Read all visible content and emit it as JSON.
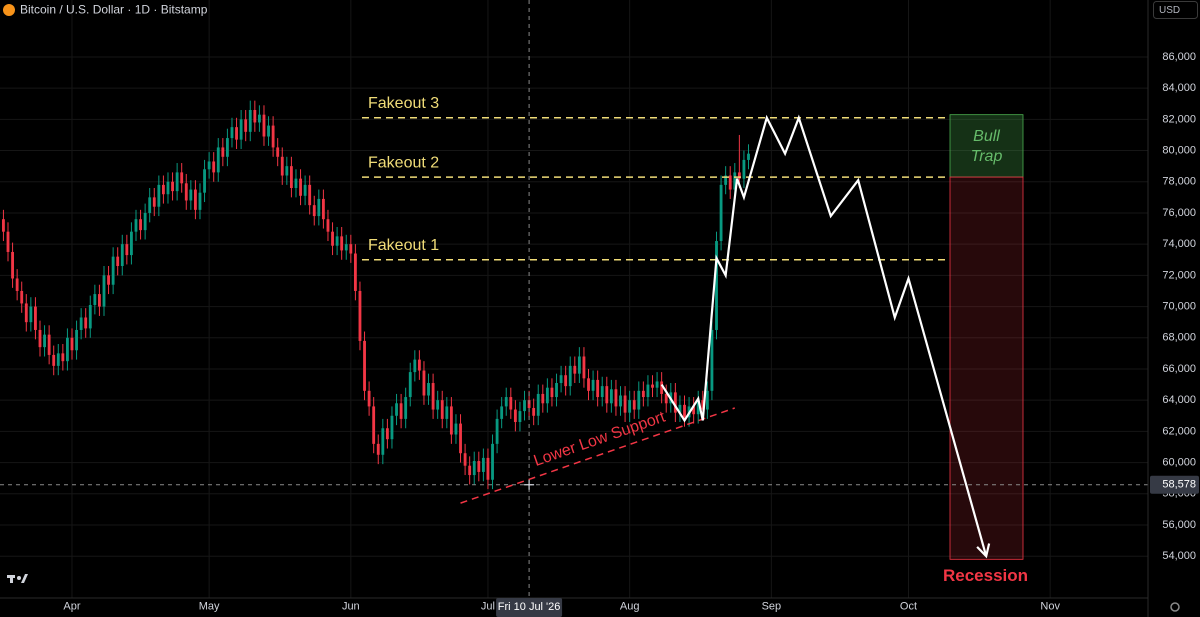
{
  "chart_data": {
    "type": "candlestick",
    "title": "Bitcoin / U.S. Dollar · 1D · Bitstamp",
    "currency": "USD",
    "up_color": "#089981",
    "down_color": "#f23645",
    "grid": true,
    "xlim": [
      -0.75,
      250.4
    ],
    "xticks": [
      {
        "value": 15,
        "label": "Apr"
      },
      {
        "value": 45,
        "label": "May"
      },
      {
        "value": 76,
        "label": "Jun"
      },
      {
        "value": 106,
        "label": "Jul"
      },
      {
        "value": 137,
        "label": "Aug"
      },
      {
        "value": 168,
        "label": "Sep"
      },
      {
        "value": 198,
        "label": "Oct"
      },
      {
        "value": 229,
        "label": "Nov"
      }
    ],
    "ylim": [
      51320,
      89650
    ],
    "yticks": [
      {
        "value": 54000,
        "label": "54,000"
      },
      {
        "value": 56000,
        "label": "56,000"
      },
      {
        "value": 58000,
        "label": "58,000"
      },
      {
        "value": 60000,
        "label": "60,000"
      },
      {
        "value": 62000,
        "label": "62,000"
      },
      {
        "value": 64000,
        "label": "64,000"
      },
      {
        "value": 66000,
        "label": "66,000"
      },
      {
        "value": 68000,
        "label": "68,000"
      },
      {
        "value": 70000,
        "label": "70,000"
      },
      {
        "value": 72000,
        "label": "72,000"
      },
      {
        "value": 74000,
        "label": "74,000"
      },
      {
        "value": 76000,
        "label": "76,000"
      },
      {
        "value": 78000,
        "label": "78,000"
      },
      {
        "value": 80000,
        "label": "80,000"
      },
      {
        "value": 82000,
        "label": "82,000"
      },
      {
        "value": 84000,
        "label": "84,000"
      },
      {
        "value": 86000,
        "label": "86,000"
      }
    ],
    "open": [
      75600,
      74800,
      73500,
      71800,
      71000,
      70200,
      69000,
      70000,
      68500,
      67400,
      68200,
      66900,
      66200,
      67000,
      66500,
      68000,
      67200,
      68500,
      69300,
      68600,
      70100,
      70800,
      70000,
      72000,
      71400,
      73200,
      72600,
      74000,
      73300,
      74800,
      75600,
      74900,
      76000,
      77000,
      76400,
      77800,
      77200,
      78000,
      77400,
      78600,
      77900,
      76800,
      77500,
      76200,
      77300,
      78800,
      79300,
      78600,
      80200,
      79600,
      80800,
      81500,
      80700,
      82000,
      81200,
      82600,
      81800,
      82300,
      80900,
      81600,
      80200,
      79600,
      78400,
      79000,
      77600,
      78200,
      77100,
      77800,
      76500,
      75800,
      76900,
      75600,
      74800,
      73900,
      74500,
      73600,
      74000,
      73400,
      71000,
      67800,
      64600,
      63600,
      61200,
      60500,
      62200,
      61500,
      63000,
      63800,
      62800,
      64200,
      65800,
      66600,
      65900,
      64300,
      65100,
      63400,
      64000,
      62800,
      63600,
      61800,
      62500,
      60600,
      59800,
      59200,
      60100,
      59400,
      60300,
      58900,
      61200,
      62800,
      63600,
      64200,
      63400,
      62600,
      63300,
      64000,
      63500,
      63000,
      64400,
      63800,
      64800,
      64200,
      65100,
      65600,
      64900,
      66200,
      65700,
      66800,
      65400,
      64600,
      65300,
      64200,
      64900,
      63800,
      64700,
      63600,
      64300,
      63200,
      64000,
      63400,
      64600,
      64200,
      65000,
      64800,
      65200,
      64400,
      63800,
      64500,
      63200,
      63700,
      62900,
      63600,
      63100,
      64000,
      63400,
      64600,
      68500,
      74200,
      77800,
      78400,
      77500,
      78600,
      78200,
      79400
    ],
    "high": [
      76200,
      75400,
      74100,
      72400,
      71600,
      70800,
      70600,
      70600,
      69100,
      68800,
      68800,
      67500,
      67600,
      67600,
      68600,
      68600,
      69100,
      69900,
      69900,
      70700,
      71400,
      71400,
      72600,
      72600,
      73800,
      73800,
      74600,
      74600,
      75400,
      76200,
      76200,
      76600,
      77600,
      77600,
      78400,
      78400,
      78600,
      78600,
      79200,
      79200,
      78500,
      78100,
      78100,
      77900,
      79400,
      79900,
      79900,
      80800,
      80800,
      81400,
      82100,
      82100,
      82600,
      82600,
      83200,
      83200,
      82900,
      82900,
      82200,
      82200,
      80800,
      80200,
      79600,
      79600,
      78800,
      78800,
      78400,
      78400,
      77100,
      77500,
      77500,
      76200,
      75400,
      75100,
      75100,
      74600,
      74600,
      74000,
      71600,
      68400,
      65200,
      64200,
      61800,
      62800,
      62800,
      63600,
      64400,
      64400,
      64800,
      66400,
      67200,
      67200,
      66500,
      65700,
      65700,
      64600,
      64600,
      64200,
      64200,
      63100,
      63100,
      61200,
      60400,
      60700,
      60700,
      60900,
      60900,
      61800,
      63400,
      64200,
      64800,
      64800,
      64000,
      63900,
      64600,
      64600,
      64100,
      65000,
      65000,
      65400,
      65400,
      65700,
      66200,
      66200,
      66800,
      66800,
      67400,
      67400,
      66000,
      65900,
      65900,
      65500,
      65500,
      65300,
      65300,
      64900,
      64900,
      64600,
      64600,
      65200,
      65200,
      65600,
      65600,
      65800,
      65800,
      65000,
      65100,
      65100,
      64300,
      64300,
      64200,
      64200,
      64600,
      64600,
      65200,
      69100,
      74800,
      78400,
      79000,
      79000,
      79200,
      81000,
      80000,
      80400
    ],
    "low": [
      74200,
      72900,
      71200,
      70400,
      69600,
      68400,
      68400,
      67900,
      66800,
      66800,
      66300,
      65600,
      65600,
      65900,
      65900,
      66600,
      66600,
      67900,
      68000,
      68000,
      69500,
      69400,
      69400,
      70800,
      70800,
      72000,
      72000,
      72700,
      72700,
      74200,
      74300,
      74300,
      75400,
      75800,
      75800,
      76600,
      76600,
      76800,
      76800,
      77300,
      76200,
      76200,
      75600,
      75600,
      76700,
      78200,
      78000,
      78000,
      79000,
      79000,
      80200,
      80100,
      80100,
      80600,
      80600,
      81200,
      81200,
      80300,
      80300,
      79600,
      79000,
      77800,
      77800,
      77000,
      77000,
      76500,
      76500,
      75900,
      75200,
      75200,
      75000,
      74200,
      73300,
      73300,
      73000,
      73000,
      72800,
      70400,
      67200,
      64000,
      63000,
      60600,
      59900,
      59900,
      60900,
      60900,
      62400,
      62200,
      62200,
      63600,
      65200,
      65300,
      63700,
      63700,
      62800,
      62800,
      62200,
      62200,
      61200,
      61200,
      60000,
      59200,
      58600,
      58600,
      58800,
      58800,
      58300,
      58300,
      60600,
      62200,
      63000,
      62800,
      62000,
      62000,
      62700,
      62900,
      62400,
      62400,
      63200,
      63200,
      63600,
      63600,
      64500,
      64300,
      64300,
      65100,
      65100,
      64800,
      64000,
      64000,
      63600,
      63600,
      63200,
      63200,
      63000,
      63000,
      62600,
      62600,
      62800,
      62800,
      63600,
      63600,
      64200,
      64200,
      63800,
      63200,
      63200,
      62600,
      62600,
      62300,
      62300,
      62500,
      62500,
      62800,
      62800,
      64000,
      67900,
      73600,
      77200,
      76900,
      76900,
      77600,
      77600,
      78800
    ],
    "close": [
      74800,
      73500,
      71800,
      71000,
      70200,
      69000,
      70000,
      68500,
      67400,
      68200,
      66900,
      66200,
      67000,
      66500,
      68000,
      67200,
      68500,
      69300,
      68600,
      70100,
      70800,
      70000,
      72000,
      71400,
      73200,
      72600,
      74000,
      73300,
      74800,
      75600,
      74900,
      76000,
      77000,
      76400,
      77800,
      77200,
      78000,
      77400,
      78600,
      77900,
      76800,
      77500,
      76200,
      77300,
      78800,
      79300,
      78600,
      80200,
      79600,
      80800,
      81500,
      80700,
      82000,
      81200,
      82600,
      81800,
      82300,
      80900,
      81600,
      80200,
      79600,
      78400,
      79000,
      77600,
      78200,
      77100,
      77800,
      76500,
      75800,
      76900,
      75600,
      74800,
      73900,
      74500,
      73600,
      74000,
      73400,
      71000,
      67800,
      64600,
      63600,
      61200,
      60500,
      62200,
      61500,
      63000,
      63800,
      62800,
      64200,
      65800,
      66600,
      65900,
      64300,
      65100,
      63400,
      64000,
      62800,
      63600,
      61800,
      62500,
      60600,
      59800,
      59200,
      60100,
      59400,
      60300,
      58900,
      61200,
      62800,
      63600,
      64200,
      63400,
      62600,
      63300,
      64000,
      63500,
      63000,
      64400,
      63800,
      64800,
      64200,
      65100,
      65600,
      64900,
      66200,
      65700,
      66800,
      65400,
      64600,
      65300,
      64200,
      64900,
      63800,
      64700,
      63600,
      64300,
      63200,
      64000,
      63400,
      64600,
      64200,
      65000,
      64800,
      65200,
      64400,
      63800,
      64500,
      63200,
      63700,
      62900,
      63600,
      63100,
      64000,
      63400,
      64600,
      68500,
      74200,
      77800,
      78400,
      77500,
      78600,
      78200,
      79400,
      79800
    ],
    "levels": [
      {
        "label": "Fakeout 1",
        "value": 73000
      },
      {
        "label": "Fakeout 2",
        "value": 78300
      },
      {
        "label": "Fakeout 3",
        "value": 82100
      }
    ],
    "projection": {
      "color": "#ffffff",
      "x": [
        144,
        149,
        152,
        153,
        156,
        158,
        160.5,
        162,
        167,
        171,
        174,
        181,
        187,
        195,
        198,
        215
      ],
      "values": [
        65000,
        62700,
        64100,
        62700,
        73100,
        72000,
        78200,
        77000,
        82100,
        79800,
        82100,
        75800,
        78100,
        69300,
        71800,
        54000
      ]
    },
    "support": {
      "label": "Lower Low Support",
      "color": "#f23645",
      "x": [
        100,
        160
      ],
      "values": [
        57400,
        63500
      ]
    },
    "bull_trap": {
      "label_lines": [
        "Bull",
        "Trap"
      ],
      "top": 82300,
      "bottom": 78300
    },
    "recession": {
      "label": "Recession",
      "top": 78300,
      "bottom": 53800
    },
    "crosshair": {
      "x": 115,
      "date_label": "Fri 10 Jul '26",
      "price": {
        "value": 58578,
        "label": "58,578"
      }
    }
  }
}
